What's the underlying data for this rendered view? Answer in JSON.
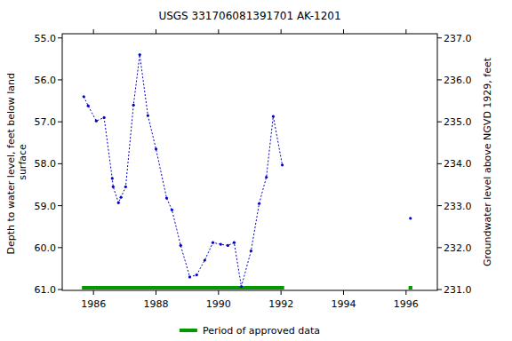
{
  "chart_data": {
    "type": "line",
    "title": "USGS 331706081391701 AK-1201",
    "ylabel": "Depth to water level, feet below land surface",
    "y2label": "Groundwater level above NGVD 1929, feet",
    "xlim": [
      1985,
      1997
    ],
    "xticks": [
      1986,
      1988,
      1990,
      1992,
      1994,
      1996
    ],
    "ylim": [
      61.02,
      54.9
    ],
    "yticks": [
      {
        "value": 55,
        "label": "55.0"
      },
      {
        "value": 56,
        "label": "56.0"
      },
      {
        "value": 57,
        "label": "57.0"
      },
      {
        "value": 58,
        "label": "58.0"
      },
      {
        "value": 59,
        "label": "59.0"
      },
      {
        "value": 60,
        "label": "60.0"
      },
      {
        "value": 61,
        "label": "61.0"
      }
    ],
    "y2lim": [
      230.98,
      237.1
    ],
    "y2ticks": [
      {
        "value": 231,
        "label": "231.0"
      },
      {
        "value": 232,
        "label": "232.0"
      },
      {
        "value": 233,
        "label": "233.0"
      },
      {
        "value": 234,
        "label": "234.0"
      },
      {
        "value": 235,
        "label": "235.0"
      },
      {
        "value": 236,
        "label": "236.0"
      },
      {
        "value": 237,
        "label": "237.0"
      }
    ],
    "series": [
      {
        "color": "#0000cc",
        "marker": "dot",
        "line_style": "dashed",
        "x": [
          1985.69,
          1985.83,
          1986.09,
          1986.34,
          1986.6,
          1986.63,
          1986.8,
          1986.88,
          1987.03,
          1987.28,
          1987.48,
          1987.74,
          1988.0,
          1988.34,
          1988.51,
          1988.79,
          1989.08,
          1989.3,
          1989.56,
          1989.82,
          1990.07,
          1990.3,
          1990.5,
          1990.73,
          1991.04,
          1991.3,
          1991.53,
          1991.75,
          1992.04
        ],
        "values": [
          56.4,
          56.62,
          56.98,
          56.9,
          58.35,
          58.55,
          58.93,
          58.8,
          58.55,
          56.6,
          55.4,
          56.85,
          57.65,
          58.82,
          59.1,
          59.95,
          60.7,
          60.65,
          60.3,
          59.88,
          59.92,
          59.95,
          59.88,
          60.93,
          60.08,
          58.95,
          58.32,
          56.87,
          58.03
        ]
      },
      {
        "color": "#0000cc",
        "marker": "dot",
        "line_style": "dashed",
        "x": [
          1996.14
        ],
        "values": [
          59.3
        ]
      }
    ],
    "approved_periods": {
      "name": "Period of approved data",
      "color": "#009900",
      "start": [
        1985.63,
        1996.08
      ],
      "end": [
        1992.1,
        1996.2
      ]
    },
    "legend": "bottom"
  }
}
